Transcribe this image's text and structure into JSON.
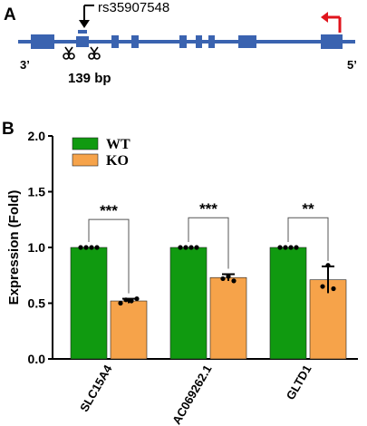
{
  "panel_a": {
    "label": "A",
    "snp_label": "rs35907548",
    "deletion_label": "139 bp",
    "end_left": "3’",
    "end_right": "5’",
    "exon_color": "#3a63b0",
    "intron_color": "#3a63b0",
    "arrow_color": "#e0141c",
    "scissors_icon": "scissors-icon"
  },
  "panel_b": {
    "label": "B",
    "chart_data": {
      "type": "bar",
      "ylabel": "Expression (Fold)",
      "xlabel": "",
      "ylim": [
        0,
        2.0
      ],
      "yticks": [
        "0.0",
        "0.5",
        "1.0",
        "1.5",
        "2.0"
      ],
      "grid": false,
      "legend_position": "top-left",
      "categories": [
        "SLC15A4",
        "AC069262.1",
        "GLTD1"
      ],
      "series": [
        {
          "name": "WT",
          "color": "#109a10",
          "values": [
            1.0,
            1.0,
            1.0
          ],
          "errors": [
            0,
            0,
            0
          ]
        },
        {
          "name": "KO",
          "color": "#f6a34a",
          "values": [
            0.52,
            0.73,
            0.71
          ],
          "errors": [
            0.02,
            0.03,
            0.12
          ]
        }
      ],
      "points": {
        "WT": [
          [
            1.0,
            1.0,
            1.0,
            1.0
          ],
          [
            1.0,
            1.0,
            1.0,
            1.0
          ],
          [
            1.0,
            1.0,
            1.0,
            1.0
          ]
        ],
        "KO": [
          [
            0.5,
            0.53,
            0.52,
            0.54
          ],
          [
            0.72,
            0.74,
            0.7
          ],
          [
            0.65,
            0.84,
            0.63
          ]
        ]
      },
      "significance": [
        "***",
        "***",
        "**"
      ],
      "bracket_levels": [
        0.975,
        0.99,
        0.99
      ]
    }
  }
}
